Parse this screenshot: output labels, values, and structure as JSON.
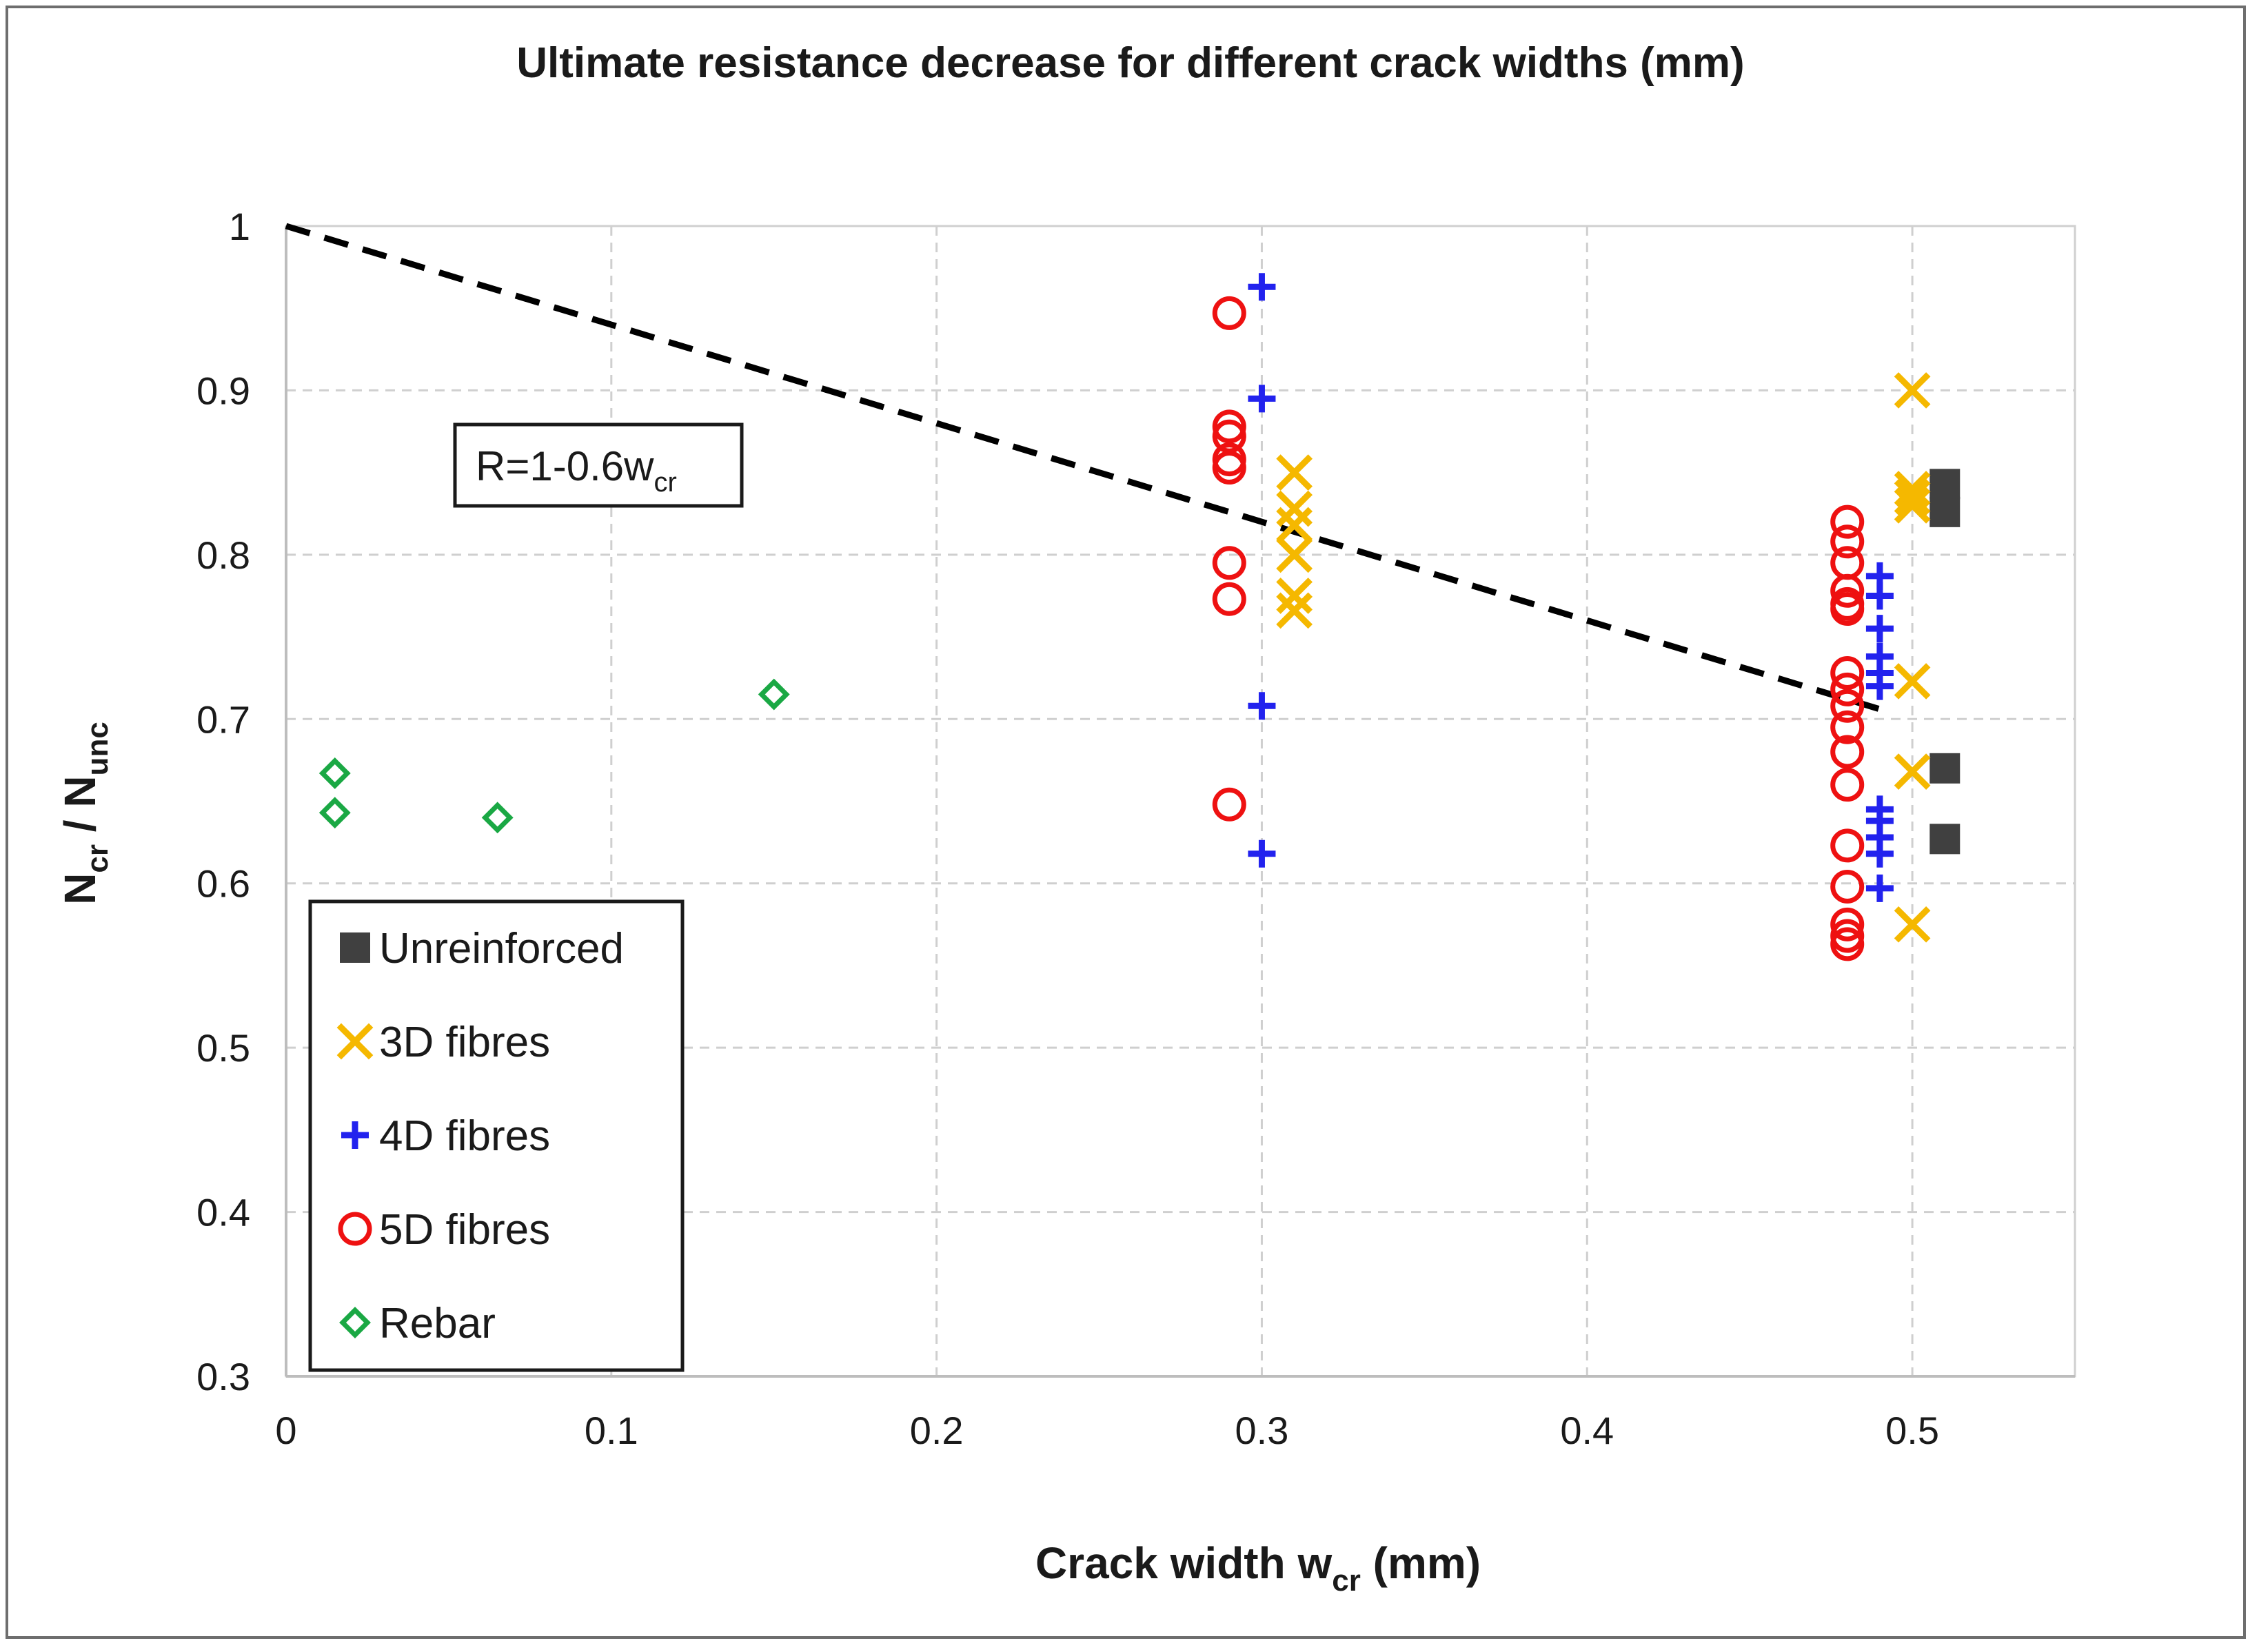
{
  "chart_data": {
    "type": "scatter",
    "title": "Ultimate resistance decrease for different crack widths (mm)",
    "xlabel": "Crack width w",
    "xlabel_sub": "cr",
    "xlabel_suffix": " (mm)",
    "ylabel_n1": "N",
    "ylabel_sub1": "cr",
    "ylabel_sep": " / N",
    "ylabel_sub2": "unc",
    "xlim": [
      0,
      0.55
    ],
    "ylim": [
      0.3,
      1.0
    ],
    "xticks": [
      0,
      0.1,
      0.2,
      0.3,
      0.4,
      0.5
    ],
    "xtick_labels": [
      "0",
      "0.1",
      "0.2",
      "0.3",
      "0.4",
      "0.5"
    ],
    "yticks": [
      0.3,
      0.4,
      0.5,
      0.6,
      0.7,
      0.8,
      0.9,
      1.0
    ],
    "ytick_labels": [
      "0.3",
      "0.4",
      "0.5",
      "0.6",
      "0.7",
      "0.8",
      "0.9",
      "1"
    ],
    "grid": true,
    "legend_position": "bottom-left",
    "trend_line": {
      "label_main": "R=1-0.6w",
      "label_sub": "cr",
      "x": [
        0,
        0.49
      ],
      "y": [
        1.0,
        0.706
      ],
      "color": "#000000",
      "style": "dashed"
    },
    "series": [
      {
        "name": "Unreinforced",
        "marker": "square",
        "color": "#404040",
        "x": [
          0.51,
          0.51,
          0.51,
          0.51
        ],
        "y": [
          0.843,
          0.826,
          0.67,
          0.627
        ]
      },
      {
        "name": "3D fibres",
        "marker": "x",
        "color": "#f5b800",
        "x": [
          0.31,
          0.31,
          0.31,
          0.31,
          0.31,
          0.31,
          0.5,
          0.5,
          0.5,
          0.5,
          0.5,
          0.5,
          0.5
        ],
        "y": [
          0.85,
          0.828,
          0.818,
          0.8,
          0.775,
          0.766,
          0.9,
          0.84,
          0.835,
          0.83,
          0.723,
          0.668,
          0.575
        ]
      },
      {
        "name": "4D fibres",
        "marker": "plus",
        "color": "#2222ee",
        "x": [
          0.3,
          0.3,
          0.3,
          0.3,
          0.49,
          0.49,
          0.49,
          0.49,
          0.49,
          0.49,
          0.49,
          0.49,
          0.49,
          0.49,
          0.49
        ],
        "y": [
          0.963,
          0.895,
          0.708,
          0.618,
          0.787,
          0.775,
          0.755,
          0.738,
          0.728,
          0.72,
          0.645,
          0.638,
          0.628,
          0.618,
          0.597
        ]
      },
      {
        "name": "5D fibres",
        "marker": "circle",
        "color": "#ee1111",
        "x": [
          0.29,
          0.29,
          0.29,
          0.29,
          0.29,
          0.29,
          0.29,
          0.29,
          0.48,
          0.48,
          0.48,
          0.48,
          0.48,
          0.48,
          0.48,
          0.48,
          0.48,
          0.48,
          0.48,
          0.48,
          0.48,
          0.48,
          0.48,
          0.48,
          0.48
        ],
        "y": [
          0.947,
          0.878,
          0.872,
          0.858,
          0.853,
          0.795,
          0.773,
          0.648,
          0.82,
          0.808,
          0.795,
          0.778,
          0.77,
          0.767,
          0.728,
          0.718,
          0.708,
          0.695,
          0.68,
          0.66,
          0.623,
          0.598,
          0.575,
          0.568,
          0.563
        ]
      },
      {
        "name": "Rebar",
        "marker": "diamond",
        "color": "#1aa844",
        "x": [
          0.015,
          0.015,
          0.065,
          0.15
        ],
        "y": [
          0.667,
          0.643,
          0.64,
          0.715
        ]
      }
    ]
  }
}
